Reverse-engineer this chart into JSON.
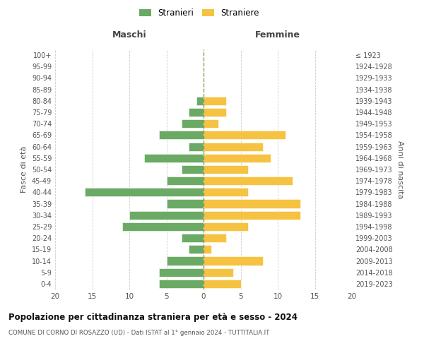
{
  "age_groups": [
    "100+",
    "95-99",
    "90-94",
    "85-89",
    "80-84",
    "75-79",
    "70-74",
    "65-69",
    "60-64",
    "55-59",
    "50-54",
    "45-49",
    "40-44",
    "35-39",
    "30-34",
    "25-29",
    "20-24",
    "15-19",
    "10-14",
    "5-9",
    "0-4"
  ],
  "birth_years": [
    "≤ 1923",
    "1924-1928",
    "1929-1933",
    "1934-1938",
    "1939-1943",
    "1944-1948",
    "1949-1953",
    "1954-1958",
    "1959-1963",
    "1964-1968",
    "1969-1973",
    "1974-1978",
    "1979-1983",
    "1984-1988",
    "1989-1993",
    "1994-1998",
    "1999-2003",
    "2004-2008",
    "2009-2013",
    "2014-2018",
    "2019-2023"
  ],
  "maschi": [
    0,
    0,
    0,
    0,
    1,
    2,
    3,
    6,
    2,
    8,
    3,
    5,
    16,
    5,
    10,
    11,
    3,
    2,
    5,
    6,
    6
  ],
  "femmine": [
    0,
    0,
    0,
    0,
    3,
    3,
    2,
    11,
    8,
    9,
    6,
    12,
    6,
    13,
    13,
    6,
    3,
    1,
    8,
    4,
    5
  ],
  "color_maschi": "#6aaa64",
  "color_femmine": "#f5c242",
  "title": "Popolazione per cittadinanza straniera per età e sesso - 2024",
  "subtitle": "COMUNE DI CORNO DI ROSAZZO (UD) - Dati ISTAT al 1° gennaio 2024 - TUTTITALIA.IT",
  "xlabel_left": "Maschi",
  "xlabel_right": "Femmine",
  "ylabel_left": "Fasce di età",
  "ylabel_right": "Anni di nascita",
  "legend_maschi": "Stranieri",
  "legend_femmine": "Straniere",
  "xlim": 20,
  "background_color": "#ffffff"
}
